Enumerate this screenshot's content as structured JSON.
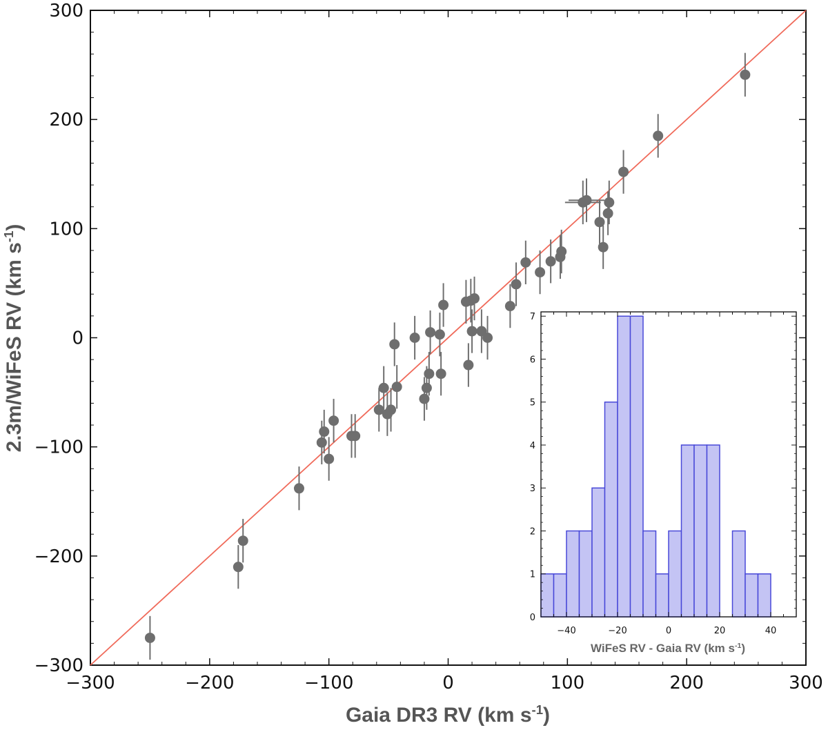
{
  "chart_data": [
    {
      "type": "scatter",
      "name": "main",
      "xlabel": {
        "pre": "Gaia DR3  RV  (km s",
        "sup": "-1",
        "post": ")"
      },
      "ylabel": {
        "pre": "2.3m/WiFeS  RV  (km s",
        "sup": "-1",
        "post": ")"
      },
      "xlim": [
        -300,
        300
      ],
      "ylim": [
        -300,
        300
      ],
      "xticks": [
        -300,
        -200,
        -100,
        0,
        100,
        200,
        300
      ],
      "yticks": [
        -300,
        -200,
        -100,
        0,
        100,
        200,
        300
      ],
      "xticklabels": [
        "−300",
        "−200",
        "−100",
        "0",
        "100",
        "200",
        "300"
      ],
      "yticklabels": [
        "−300",
        "−200",
        "−100",
        "0",
        "100",
        "200",
        "300"
      ],
      "one_to_one_line": {
        "from": [
          -300,
          -300
        ],
        "to": [
          300,
          300
        ],
        "color": "#f06a5a"
      },
      "marker_color": "#6e6e6e",
      "points": [
        {
          "x": -250,
          "y": -275,
          "yerr": 20
        },
        {
          "x": -176,
          "y": -210,
          "yerr": 20
        },
        {
          "x": -172,
          "y": -186,
          "yerr": 20
        },
        {
          "x": -125,
          "y": -138,
          "yerr": 20
        },
        {
          "x": -106,
          "y": -96,
          "yerr": 20
        },
        {
          "x": -104,
          "y": -86,
          "yerr": 20
        },
        {
          "x": -100,
          "y": -111,
          "yerr": 20
        },
        {
          "x": -96,
          "y": -76,
          "yerr": 20
        },
        {
          "x": -81,
          "y": -90,
          "yerr": 20
        },
        {
          "x": -78,
          "y": -90,
          "yerr": 20
        },
        {
          "x": -58,
          "y": -66,
          "yerr": 20
        },
        {
          "x": -54,
          "y": -46,
          "yerr": 20
        },
        {
          "x": -51,
          "y": -70,
          "yerr": 20
        },
        {
          "x": -48,
          "y": -66,
          "yerr": 20
        },
        {
          "x": -45,
          "y": -6,
          "yerr": 20
        },
        {
          "x": -43,
          "y": -45,
          "yerr": 20
        },
        {
          "x": -28,
          "y": 0,
          "yerr": 20
        },
        {
          "x": -20,
          "y": -56,
          "yerr": 20
        },
        {
          "x": -18,
          "y": -46,
          "yerr": 20
        },
        {
          "x": -16,
          "y": -33,
          "yerr": 20
        },
        {
          "x": -15,
          "y": 5,
          "yerr": 20
        },
        {
          "x": -7,
          "y": 3,
          "yerr": 20
        },
        {
          "x": -6,
          "y": -33,
          "yerr": 20
        },
        {
          "x": -4,
          "y": 30,
          "yerr": 20
        },
        {
          "x": 15,
          "y": 33,
          "yerr": 20
        },
        {
          "x": 17,
          "y": -25,
          "yerr": 20
        },
        {
          "x": 19,
          "y": 34,
          "yerr": 20
        },
        {
          "x": 20,
          "y": 6,
          "yerr": 20
        },
        {
          "x": 22,
          "y": 36,
          "yerr": 20
        },
        {
          "x": 28,
          "y": 6,
          "yerr": 20
        },
        {
          "x": 33,
          "y": 0,
          "yerr": 20
        },
        {
          "x": 52,
          "y": 29,
          "yerr": 20
        },
        {
          "x": 57,
          "y": 49,
          "yerr": 20
        },
        {
          "x": 65,
          "y": 69,
          "yerr": 20
        },
        {
          "x": 77,
          "y": 60,
          "yerr": 20
        },
        {
          "x": 86,
          "y": 70,
          "yerr": 20
        },
        {
          "x": 94,
          "y": 74,
          "yerr": 20
        },
        {
          "x": 95,
          "y": 79,
          "yerr": 20
        },
        {
          "x": 113,
          "y": 124,
          "yerr": 20,
          "xerr": 15
        },
        {
          "x": 116,
          "y": 126,
          "yerr": 20,
          "xerr": 15
        },
        {
          "x": 127,
          "y": 106,
          "yerr": 20
        },
        {
          "x": 130,
          "y": 83,
          "yerr": 20
        },
        {
          "x": 134,
          "y": 114,
          "yerr": 20
        },
        {
          "x": 135,
          "y": 124,
          "yerr": 20
        },
        {
          "x": 147,
          "y": 152,
          "yerr": 20
        },
        {
          "x": 176,
          "y": 185,
          "yerr": 20
        },
        {
          "x": 249,
          "y": 241,
          "yerr": 20
        }
      ]
    },
    {
      "type": "bar",
      "name": "inset-histogram",
      "xlabel": {
        "pre": "WiFeS RV  -  Gaia RV  (km s",
        "sup": "-1",
        "post": ")"
      },
      "xlim": [
        -50,
        50
      ],
      "ylim": [
        0,
        7.1
      ],
      "bin_width": 5,
      "xticks": [
        -40,
        -20,
        0,
        20,
        40
      ],
      "xticklabels": [
        "−40",
        "−20",
        "0",
        "20",
        "40"
      ],
      "yticks": [
        0,
        1,
        2,
        3,
        4,
        5,
        6,
        7
      ],
      "yticklabels": [
        "0",
        "1",
        "2",
        "3",
        "4",
        "5",
        "6",
        "7"
      ],
      "fill_color": "#c4c4f4",
      "edge_color": "#4848d8",
      "bins": [
        {
          "start": -50,
          "count": 1
        },
        {
          "start": -45,
          "count": 1
        },
        {
          "start": -40,
          "count": 2
        },
        {
          "start": -35,
          "count": 2
        },
        {
          "start": -30,
          "count": 3
        },
        {
          "start": -25,
          "count": 5
        },
        {
          "start": -20,
          "count": 7
        },
        {
          "start": -15,
          "count": 7
        },
        {
          "start": -10,
          "count": 2
        },
        {
          "start": -5,
          "count": 1
        },
        {
          "start": 0,
          "count": 2
        },
        {
          "start": 5,
          "count": 4
        },
        {
          "start": 10,
          "count": 4
        },
        {
          "start": 15,
          "count": 4
        },
        {
          "start": 20,
          "count": 0
        },
        {
          "start": 25,
          "count": 2
        },
        {
          "start": 30,
          "count": 1
        },
        {
          "start": 35,
          "count": 1
        }
      ]
    }
  ]
}
